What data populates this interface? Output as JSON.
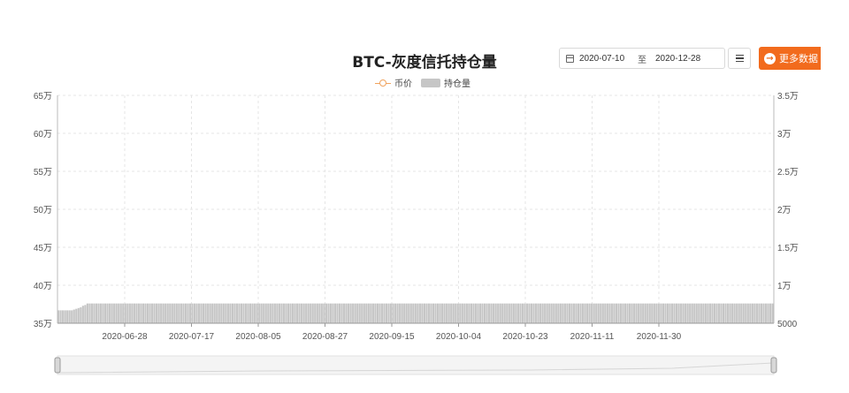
{
  "header": {
    "title": "BTC-灰度信托持仓量",
    "date_start": "2020-07-10",
    "date_sep": "至",
    "date_end": "2020-12-28",
    "more_label": "更多数据"
  },
  "legend": {
    "price": "币价",
    "holdings": "持仓量"
  },
  "colors": {
    "price_line": "#f0a35e",
    "bars": "#c6c6c6",
    "accent": "#f26b1d",
    "grid": "#e5e5e5"
  },
  "chart_data": {
    "type": "bar",
    "title": "BTC-灰度信托持仓量",
    "x_ticks": [
      "2020-06-28",
      "2020-07-17",
      "2020-08-05",
      "2020-08-27",
      "2020-09-15",
      "2020-10-04",
      "2020-10-23",
      "2020-11-11",
      "2020-11-30"
    ],
    "y_left_ticks": [
      "65万",
      "60万",
      "55万",
      "50万",
      "45万",
      "40万",
      "35万"
    ],
    "y_right_ticks": [
      "3.5万",
      "3万",
      "2.5万",
      "2万",
      "1.5万",
      "1万",
      "5000"
    ],
    "ylim_left": [
      350000,
      650000
    ],
    "ylim_right": [
      5000,
      35000
    ],
    "grid": true,
    "legend_position": "top-center",
    "series": [
      {
        "name": "持仓量",
        "type": "bar",
        "axis": "left",
        "values": [
          367000,
          367000,
          367000,
          367000,
          367000,
          367000,
          367000,
          368000,
          369000,
          370000,
          371000,
          373000,
          374000,
          376000,
          376000,
          376000,
          376000,
          376000,
          376000,
          376000,
          376000,
          376000,
          376000,
          376000,
          376000,
          376000,
          376000,
          376000,
          376000,
          376000,
          376000,
          376000,
          376000,
          376000,
          376000,
          376000,
          376000,
          376000,
          376000,
          376000,
          376000,
          376000,
          376000,
          376000,
          376000,
          376000,
          376000,
          376000,
          376000,
          376000,
          376000,
          376000,
          376000,
          376000,
          376000,
          376000,
          376000,
          376000,
          376000,
          376000,
          376000,
          376000,
          376000,
          376000,
          376000,
          376000,
          376000,
          376000,
          376000,
          376000,
          376000,
          376000,
          376000,
          376000,
          376000,
          376000,
          376000,
          376000,
          376000,
          376000,
          376000,
          376000,
          376000,
          376000,
          376000,
          376000,
          376000,
          376000,
          376000,
          376000,
          376000,
          376000,
          376000,
          376000,
          376000,
          376000,
          376000,
          376000,
          376000,
          376000,
          376000,
          376000,
          376000,
          376000,
          376000,
          376000,
          376000,
          376000,
          376000,
          376000,
          376000,
          376000,
          376000,
          376000,
          376000,
          376000,
          376000,
          376000,
          376000,
          376000,
          376000,
          376000,
          376000,
          376000,
          376000,
          376000,
          376000,
          376000,
          376000,
          376000,
          376000,
          376000,
          376000,
          376000,
          376000,
          376000,
          376000,
          376000,
          376000,
          376000,
          376000,
          376000,
          376000,
          376000,
          376000,
          376000,
          376000,
          376000,
          376000,
          376000,
          376000,
          376000,
          376000,
          376000,
          376000,
          376000,
          376000,
          376000,
          376000,
          376000,
          376000,
          376000,
          376000,
          376000,
          376000,
          376000,
          376000,
          376000,
          376000,
          376000,
          376000,
          376000,
          376000,
          376000,
          376000,
          376000,
          376000,
          376000,
          376000,
          376000,
          376000,
          376000,
          376000,
          376000,
          376000,
          376000,
          376000,
          376000,
          376000,
          376000,
          376000,
          376000,
          376000,
          376000,
          376000,
          376000,
          376000,
          376000,
          376000,
          376000,
          376000,
          376000,
          376000,
          376000,
          376000,
          376000,
          376000,
          376000,
          376000,
          376000,
          376000,
          376000,
          376000,
          376000,
          376000,
          376000,
          376000,
          376000,
          376000,
          376000,
          376000,
          376000,
          376000,
          376000,
          376000,
          376000,
          376000,
          376000,
          376000,
          376000,
          376000,
          376000,
          376000,
          376000,
          376000,
          376000,
          376000,
          376000,
          376000,
          376000,
          376000,
          376000,
          376000,
          376000,
          376000,
          376000,
          376000,
          376000,
          376000,
          376000,
          376000,
          376000,
          376000,
          376000,
          376000,
          376000,
          376000,
          376000,
          376000,
          376000,
          376000,
          376000,
          376000,
          376000,
          376000,
          376000,
          376000,
          376000,
          376000,
          376000,
          376000,
          376000,
          376000,
          376000,
          376000,
          376000,
          376000,
          376000,
          376000,
          376000,
          376000,
          376000,
          376000,
          376000,
          376000,
          376000,
          376000,
          376000,
          376000,
          376000,
          376000,
          376000,
          376000,
          376000,
          376000,
          376000,
          376000,
          376000,
          376000,
          376000,
          376000,
          376000,
          376000,
          376000,
          376000,
          376000,
          376000,
          376000,
          376000,
          376000,
          376000,
          376000,
          376000,
          376000,
          376000,
          376000,
          376000,
          376000,
          376000,
          376000,
          376000
        ]
      }
    ]
  }
}
